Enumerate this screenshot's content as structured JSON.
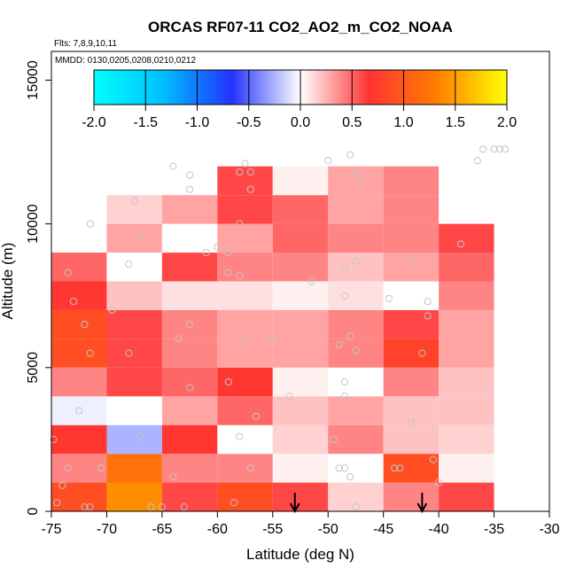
{
  "chart_data": {
    "type": "heatmap",
    "title": "ORCAS RF07-11 CO2_AO2_m_CO2_NOAA",
    "flights_label": "Flts: 7,8,9,10,11",
    "dates_label": "MMDD: 0130,0205,0208,0210,0212",
    "xlabel": "Latitude (deg N)",
    "ylabel": "Altitude (m)",
    "xlim": [
      -75,
      -30
    ],
    "ylim": [
      0,
      16000
    ],
    "x_ticks": [
      -75,
      -70,
      -65,
      -60,
      -55,
      -50,
      -45,
      -40,
      -35,
      -30
    ],
    "x_tick_labels": [
      "-75",
      "-70",
      "-65",
      "-60",
      "-55",
      "-50",
      "-45",
      "-40",
      "-35",
      "-30"
    ],
    "y_ticks": [
      0,
      5000,
      10000,
      15000
    ],
    "y_tick_labels": [
      "0",
      "5000",
      "10000",
      "15000"
    ],
    "colorbar": {
      "range": [
        -2.0,
        2.0
      ],
      "tick_values": [
        -2.0,
        -1.5,
        -1.0,
        -0.5,
        0.0,
        0.5,
        1.0,
        1.5,
        2.0
      ],
      "tick_labels": [
        "-2.0",
        "-1.5",
        "-1.0",
        "-0.5",
        "0.0",
        "0.5",
        "1.0",
        "1.5",
        "2.0"
      ],
      "colors": [
        "#00ffff",
        "#00bfff",
        "#2233ff",
        "#ffffff",
        "#ff3333",
        "#ff8000",
        "#ffff00"
      ]
    },
    "lat_bin_edges": [
      -75,
      -70,
      -65,
      -60,
      -55,
      -50,
      -45,
      -40,
      -35
    ],
    "alt_bin_edges": [
      0,
      1000,
      2000,
      3000,
      4000,
      5000,
      6000,
      7000,
      8000,
      9000,
      10000,
      11000,
      12000
    ],
    "cells": [
      [
        0.9,
        1.4,
        0.6,
        0.9,
        0.6,
        0.15,
        0.4,
        0.6
      ],
      [
        0.4,
        1.2,
        0.4,
        0.4,
        0.05,
        0.0,
        0.9,
        0.05
      ],
      [
        0.7,
        -0.25,
        0.7,
        0.0,
        0.15,
        0.4,
        0.2,
        0.15
      ],
      [
        -0.05,
        0.0,
        0.3,
        0.5,
        0.2,
        0.3,
        0.2,
        0.2
      ],
      [
        0.4,
        0.6,
        0.5,
        0.7,
        0.05,
        0.0,
        0.4,
        0.2
      ],
      [
        0.9,
        0.6,
        0.4,
        0.3,
        0.3,
        0.4,
        0.8,
        0.3
      ],
      [
        0.9,
        0.6,
        0.4,
        0.3,
        0.3,
        0.4,
        0.6,
        0.3
      ],
      [
        0.7,
        0.2,
        0.1,
        0.1,
        0.05,
        0.1,
        0.0,
        0.4
      ],
      [
        0.5,
        0.0,
        0.6,
        0.4,
        0.4,
        0.2,
        0.3,
        0.5
      ],
      [
        null,
        0.3,
        0.0,
        0.3,
        0.5,
        0.4,
        0.4,
        0.6
      ],
      [
        null,
        0.15,
        0.3,
        0.6,
        0.5,
        0.3,
        0.4,
        null
      ],
      [
        null,
        null,
        null,
        0.6,
        0.05,
        0.3,
        0.4,
        null
      ]
    ],
    "arrow_latitudes": [
      -53,
      -41.5
    ],
    "points": [
      [
        -74.5,
        300
      ],
      [
        -74,
        900
      ],
      [
        -74.8,
        2500
      ],
      [
        -73.5,
        1500
      ],
      [
        -72,
        150
      ],
      [
        -71.5,
        150
      ],
      [
        -70.5,
        1500
      ],
      [
        -72.5,
        3500
      ],
      [
        -71.5,
        5500
      ],
      [
        -73,
        7300
      ],
      [
        -72,
        6500
      ],
      [
        -73.5,
        8300
      ],
      [
        -71.5,
        10000
      ],
      [
        -69.5,
        7000
      ],
      [
        -68,
        5500
      ],
      [
        -67.5,
        10800
      ],
      [
        -67,
        9600
      ],
      [
        -68,
        8600
      ],
      [
        -67,
        2600
      ],
      [
        -66,
        150
      ],
      [
        -65,
        150
      ],
      [
        -64,
        1200
      ],
      [
        -63,
        150
      ],
      [
        -62.5,
        4300
      ],
      [
        -63.5,
        6000
      ],
      [
        -62.5,
        6500
      ],
      [
        -61,
        9000
      ],
      [
        -62.5,
        11200
      ],
      [
        -62.5,
        11700
      ],
      [
        -64,
        12000
      ],
      [
        -60,
        9200
      ],
      [
        -59,
        9000
      ],
      [
        -59,
        8300
      ],
      [
        -59,
        4500
      ],
      [
        -58,
        2600
      ],
      [
        -58.5,
        300
      ],
      [
        -57,
        1500
      ],
      [
        -56.5,
        3300
      ],
      [
        -57.5,
        5900
      ],
      [
        -58,
        8200
      ],
      [
        -58,
        10000
      ],
      [
        -58,
        11800
      ],
      [
        -57.5,
        12100
      ],
      [
        -57,
        11800
      ],
      [
        -57,
        11200
      ],
      [
        -55,
        6000
      ],
      [
        -53.5,
        4000
      ],
      [
        -51.5,
        8000
      ],
      [
        -50,
        12200
      ],
      [
        -49.5,
        2500
      ],
      [
        -49,
        1500
      ],
      [
        -48.5,
        1500
      ],
      [
        -48,
        1200
      ],
      [
        -47.5,
        150
      ],
      [
        -48.5,
        4000
      ],
      [
        -48.5,
        4500
      ],
      [
        -49,
        5800
      ],
      [
        -48,
        6100
      ],
      [
        -47.5,
        5600
      ],
      [
        -48.5,
        7500
      ],
      [
        -48.5,
        8500
      ],
      [
        -47.5,
        8700
      ],
      [
        -48,
        12400
      ],
      [
        -47,
        11500
      ],
      [
        -47.5,
        11800
      ],
      [
        -44.5,
        7400
      ],
      [
        -44,
        1500
      ],
      [
        -43.5,
        1500
      ],
      [
        -42.5,
        3100
      ],
      [
        -42.5,
        8700
      ],
      [
        -41.5,
        5500
      ],
      [
        -41,
        6800
      ],
      [
        -41,
        7300
      ],
      [
        -40.5,
        1800
      ],
      [
        -40,
        1000
      ],
      [
        -38,
        9300
      ],
      [
        -36.5,
        12200
      ],
      [
        -36,
        12600
      ],
      [
        -35,
        12600
      ],
      [
        -34.5,
        12600
      ],
      [
        -34,
        12600
      ]
    ]
  }
}
